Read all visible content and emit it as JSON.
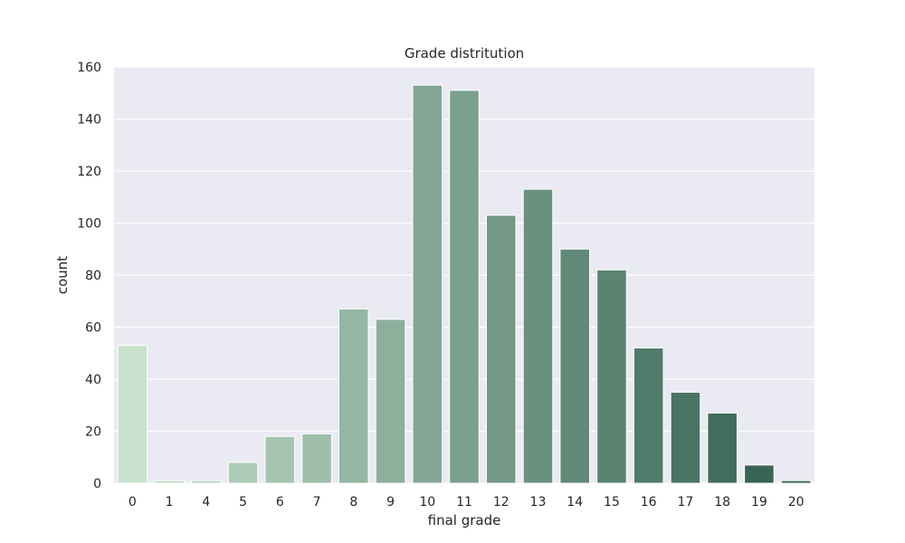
{
  "chart_data": {
    "type": "bar",
    "title": "Grade distritution",
    "xlabel": "final grade",
    "ylabel": "count",
    "categories": [
      "0",
      "1",
      "4",
      "5",
      "6",
      "7",
      "8",
      "9",
      "10",
      "11",
      "12",
      "13",
      "14",
      "15",
      "16",
      "17",
      "18",
      "19",
      "20"
    ],
    "values": [
      53,
      1,
      1,
      8,
      18,
      19,
      67,
      63,
      153,
      151,
      103,
      113,
      90,
      82,
      52,
      35,
      27,
      7,
      1
    ],
    "ylim": [
      0,
      160
    ],
    "yticks": [
      0,
      20,
      40,
      60,
      80,
      100,
      120,
      140,
      160
    ],
    "grid": true,
    "colors": {
      "background": "#eaeaf2",
      "grid": "#ffffff",
      "bar_start": "#c8e2cd",
      "bar_end": "#2f5e4e"
    }
  }
}
